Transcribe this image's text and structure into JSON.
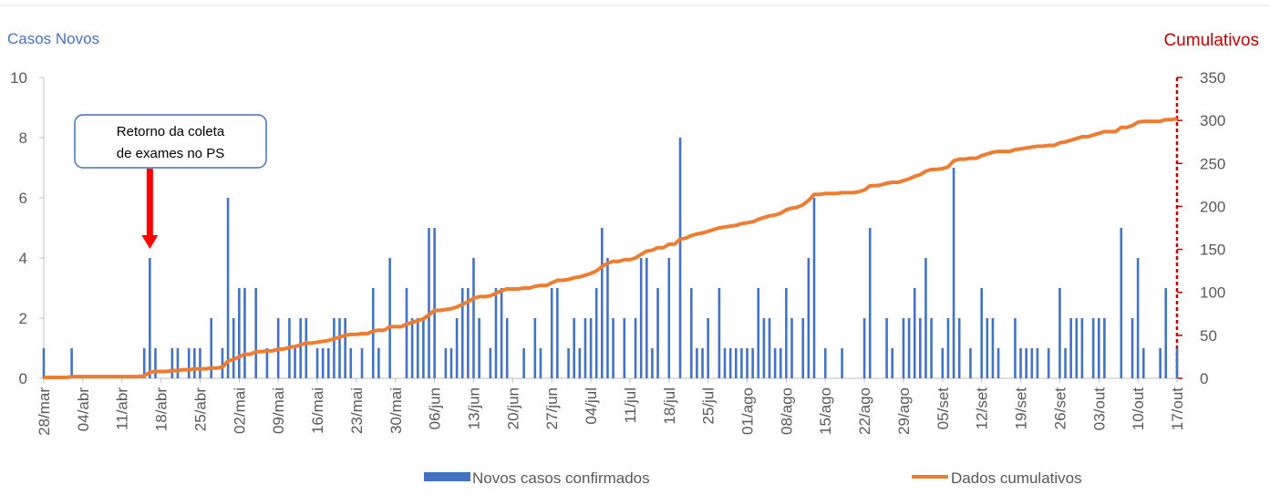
{
  "chart_data": {
    "type": "bar_line",
    "y_title": "Casos Novos",
    "y2_title": "Cumulativos",
    "annotation": {
      "lines": [
        "Retorno da coleta",
        "de exames no PS"
      ],
      "category_index": 19
    },
    "categories": [
      "28/mar",
      null,
      null,
      null,
      null,
      null,
      null,
      "04/abr",
      null,
      null,
      null,
      null,
      null,
      null,
      "11/abr",
      null,
      null,
      null,
      null,
      null,
      null,
      "18/abr",
      null,
      null,
      null,
      null,
      null,
      null,
      "25/abr",
      null,
      null,
      null,
      null,
      null,
      null,
      "02/mai",
      null,
      null,
      null,
      null,
      null,
      null,
      "09/mai",
      null,
      null,
      null,
      null,
      null,
      null,
      "16/mai",
      null,
      null,
      null,
      null,
      null,
      null,
      "23/mai",
      null,
      null,
      null,
      null,
      null,
      null,
      "30/mai",
      null,
      null,
      null,
      null,
      null,
      null,
      "06/jun",
      null,
      null,
      null,
      null,
      null,
      null,
      "13/jun",
      null,
      null,
      null,
      null,
      null,
      null,
      "20/jun",
      null,
      null,
      null,
      null,
      null,
      null,
      "27/jun",
      null,
      null,
      null,
      null,
      null,
      null,
      "04/jul",
      null,
      null,
      null,
      null,
      null,
      null,
      "11/jul",
      null,
      null,
      null,
      null,
      null,
      null,
      "18/jul",
      null,
      null,
      null,
      null,
      null,
      null,
      "25/jul",
      null,
      null,
      null,
      null,
      null,
      null,
      "01/ago",
      null,
      null,
      null,
      null,
      null,
      null,
      "08/ago",
      null,
      null,
      null,
      null,
      null,
      null,
      "15/ago",
      null,
      null,
      null,
      null,
      null,
      null,
      "22/ago",
      null,
      null,
      null,
      null,
      null,
      null,
      "29/ago",
      null,
      null,
      null,
      null,
      null,
      null,
      "05/set",
      null,
      null,
      null,
      null,
      null,
      null,
      "12/set",
      null,
      null,
      null,
      null,
      null,
      null,
      "19/set",
      null,
      null,
      null,
      null,
      null,
      null,
      "26/set",
      null,
      null,
      null,
      null,
      null,
      null,
      "03/out",
      null,
      null,
      null,
      null,
      null,
      null,
      "10/out",
      null,
      null,
      null,
      null,
      null,
      null,
      "17/out"
    ],
    "series": [
      {
        "name": "Novos casos confirmados",
        "color": "#4472c4",
        "kind": "bar",
        "values": [
          1,
          0,
          0,
          0,
          0,
          1,
          0,
          0,
          0,
          0,
          0,
          0,
          0,
          0,
          0,
          0,
          0,
          0,
          1,
          4,
          1,
          0,
          0,
          1,
          1,
          0,
          1,
          1,
          1,
          0,
          2,
          0,
          1,
          6,
          2,
          3,
          3,
          0,
          3,
          0,
          1,
          0,
          2,
          0,
          2,
          1,
          2,
          2,
          0,
          1,
          1,
          1,
          2,
          2,
          2,
          1,
          0,
          1,
          0,
          3,
          1,
          0,
          4,
          0,
          0,
          3,
          2,
          2,
          2,
          5,
          5,
          0,
          1,
          1,
          2,
          3,
          3,
          4,
          2,
          0,
          1,
          3,
          3,
          2,
          0,
          0,
          1,
          0,
          2,
          1,
          0,
          3,
          3,
          0,
          1,
          2,
          1,
          2,
          2,
          3,
          5,
          4,
          2,
          0,
          2,
          0,
          2,
          4,
          4,
          1,
          3,
          0,
          4,
          0,
          8,
          0,
          3,
          1,
          1,
          2,
          0,
          3,
          1,
          1,
          1,
          1,
          1,
          1,
          3,
          2,
          2,
          1,
          1,
          3,
          2,
          0,
          2,
          4,
          6,
          0,
          1,
          0,
          0,
          1,
          0,
          0,
          0,
          2,
          5,
          0,
          0,
          2,
          1,
          0,
          2,
          2,
          3,
          2,
          4,
          2,
          0,
          1,
          2,
          7,
          2,
          0,
          1,
          0,
          3,
          2,
          2,
          1,
          0,
          0,
          2,
          1,
          1,
          1,
          1,
          0,
          1,
          0,
          3,
          1,
          2,
          2,
          2,
          0,
          2,
          2,
          2,
          0,
          0,
          5,
          0,
          2,
          4,
          1,
          0,
          0,
          1,
          3,
          0,
          1
        ]
      },
      {
        "name": "Dados cumulativos",
        "color": "#ed7d31",
        "kind": "line",
        "axis": "y2",
        "values": [
          1,
          1,
          1,
          1,
          1,
          2,
          2,
          2,
          2,
          2,
          2,
          2,
          2,
          2,
          2,
          2,
          2,
          2,
          3,
          7,
          8,
          8,
          8,
          9,
          9,
          10,
          10,
          11,
          11,
          11,
          12,
          12,
          13,
          20,
          22,
          25,
          28,
          28,
          31,
          31,
          32,
          32,
          34,
          34,
          36,
          37,
          39,
          41,
          41,
          42,
          43,
          44,
          46,
          48,
          50,
          51,
          51,
          52,
          52,
          55,
          56,
          56,
          60,
          60,
          60,
          63,
          65,
          67,
          69,
          74,
          79,
          79,
          80,
          81,
          83,
          86,
          89,
          93,
          95,
          95,
          96,
          99,
          102,
          104,
          104,
          104,
          105,
          105,
          107,
          108,
          108,
          111,
          114,
          114,
          115,
          117,
          118,
          120,
          122,
          125,
          130,
          134,
          136,
          136,
          138,
          138,
          140,
          144,
          148,
          149,
          152,
          152,
          156,
          156,
          162,
          163,
          166,
          168,
          169,
          171,
          173,
          175,
          176,
          177,
          178,
          180,
          181,
          182,
          185,
          187,
          189,
          190,
          192,
          196,
          198,
          199,
          202,
          207,
          214,
          214,
          215,
          215,
          215,
          216,
          216,
          216,
          217,
          219,
          224,
          224,
          225,
          227,
          228,
          228,
          230,
          232,
          235,
          237,
          241,
          243,
          243,
          244,
          246,
          253,
          255,
          255,
          256,
          256,
          259,
          261,
          263,
          264,
          264,
          264,
          266,
          267,
          268,
          269,
          270,
          270,
          271,
          271,
          274,
          275,
          277,
          279,
          281,
          281,
          283,
          285,
          287,
          287,
          287,
          292,
          292,
          294,
          298,
          299,
          299,
          299,
          299,
          301,
          301,
          302
        ]
      }
    ],
    "ylim": [
      0,
      10
    ],
    "yticks": [
      0,
      2,
      4,
      6,
      8,
      10
    ],
    "y2lim": [
      0,
      350
    ],
    "y2ticks": [
      0,
      50,
      100,
      150,
      200,
      250,
      300,
      350
    ],
    "y_title_color": "#4472c4",
    "y2_title_color": "#c00000",
    "y2_axis_color": "#c00000",
    "annotation_arrow_color": "#ff0000",
    "legend": "bottom"
  }
}
